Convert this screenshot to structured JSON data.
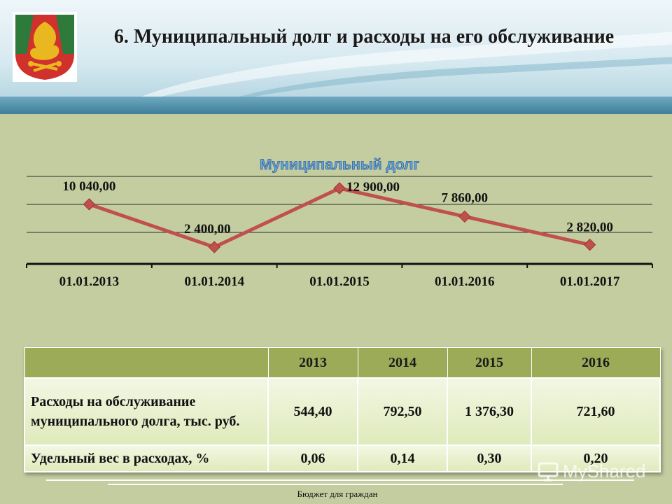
{
  "slide": {
    "title": "6. Муниципальный долг и расходы на его обслуживание"
  },
  "chart_data": {
    "type": "line",
    "title": "Муниципальный долг",
    "categories": [
      "01.01.2013",
      "01.01.2014",
      "01.01.2015",
      "01.01.2016",
      "01.01.2017"
    ],
    "values": [
      10040,
      2400,
      12900,
      7860,
      2820
    ],
    "data_labels": [
      "10 040,00",
      "2 400,00",
      "12 900,00",
      "7 860,00",
      "2 820,00"
    ],
    "series_color": "#c0504d",
    "grid": true,
    "legend": "none"
  },
  "table": {
    "headers": [
      "",
      "2013",
      "2014",
      "2015",
      "2016"
    ],
    "rows": [
      {
        "label": "Расходы на обслуживание муниципального долга, тыс. руб.",
        "values": [
          "544,40",
          "792,50",
          "1 376,30",
          "721,60"
        ]
      },
      {
        "label": "Удельный вес в расходах, %",
        "values": [
          "0,06",
          "0,14",
          "0,30",
          "0,20"
        ]
      }
    ]
  },
  "footer": {
    "text": "Бюджет для граждан"
  },
  "watermark": {
    "text": "MyShared",
    "icon": "presentation-board-icon"
  },
  "emblem": {
    "icon": "coat-of-arms-icon",
    "colors": [
      "#d0312d",
      "#2e7a3a",
      "#e9b820"
    ]
  }
}
